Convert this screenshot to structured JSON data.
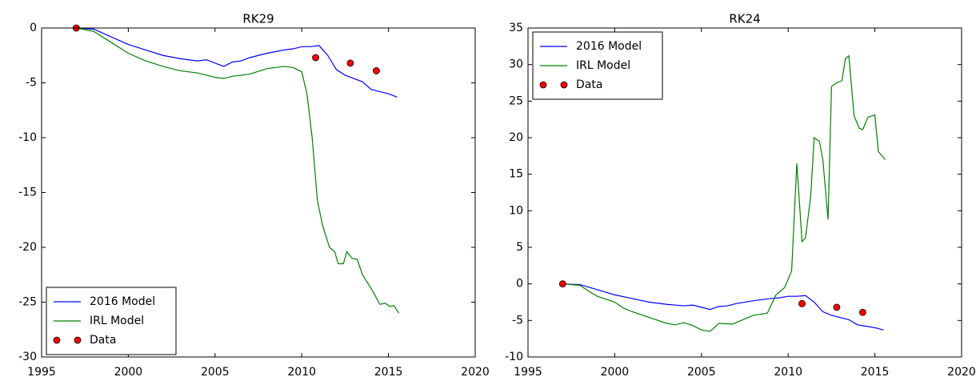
{
  "chart_data": [
    {
      "type": "line",
      "title": "RK29",
      "xlim": [
        1995,
        2020
      ],
      "xticks": [
        1995,
        2000,
        2005,
        2010,
        2015,
        2020
      ],
      "ylim": [
        -30,
        0
      ],
      "yticks": [
        -30,
        -25,
        -20,
        -15,
        -10,
        -5,
        0
      ],
      "grid": false,
      "legend": "lower left",
      "series": [
        {
          "name": "2016 Model",
          "color": "#0000ff",
          "mode": "line",
          "x": [
            1997,
            1998,
            1999,
            2000,
            2001,
            2002,
            2003,
            2004,
            2004.5,
            2005,
            2005.5,
            2006,
            2006.5,
            2007,
            2008,
            2009,
            2009.5,
            2010,
            2010.5,
            2011,
            2011.5,
            2012,
            2012.5,
            2013,
            2013.5,
            2014,
            2014.5,
            2015,
            2015.5
          ],
          "values": [
            0,
            -0.1,
            -0.8,
            -1.5,
            -2.0,
            -2.5,
            -2.8,
            -3.0,
            -2.9,
            -3.2,
            -3.5,
            -3.1,
            -3.0,
            -2.7,
            -2.3,
            -2.0,
            -1.9,
            -1.7,
            -1.7,
            -1.6,
            -2.5,
            -3.8,
            -4.3,
            -4.6,
            -4.9,
            -5.6,
            -5.8,
            -6.0,
            -6.3
          ]
        },
        {
          "name": "IRL Model",
          "color": "#008000",
          "mode": "line",
          "x": [
            1997,
            1998,
            1999,
            2000,
            2001,
            2002,
            2003,
            2004,
            2005,
            2005.5,
            2006,
            2007,
            2008,
            2009,
            2009.5,
            2010,
            2010.3,
            2010.6,
            2010.9,
            2011.2,
            2011.6,
            2011.9,
            2012.1,
            2012.4,
            2012.6,
            2012.9,
            2013.2,
            2013.5,
            2013.9,
            2014.2,
            2014.5,
            2014.8,
            2015.1,
            2015.3,
            2015.6
          ],
          "values": [
            0,
            -0.3,
            -1.3,
            -2.3,
            -3.0,
            -3.5,
            -3.9,
            -4.1,
            -4.5,
            -4.6,
            -4.4,
            -4.2,
            -3.7,
            -3.5,
            -3.6,
            -4.0,
            -6,
            -10,
            -15.7,
            -18,
            -20,
            -20.4,
            -21.5,
            -21.5,
            -20.4,
            -21.0,
            -21.1,
            -22.5,
            -23.5,
            -24.3,
            -25.2,
            -25.1,
            -25.4,
            -25.3,
            -26.0
          ]
        },
        {
          "name": "Data",
          "color": "#ff0000",
          "mode": "markers",
          "x": [
            1997,
            2010.8,
            2012.8,
            2014.3
          ],
          "values": [
            0,
            -2.7,
            -3.2,
            -3.9
          ]
        }
      ]
    },
    {
      "type": "line",
      "title": "RK24",
      "xlim": [
        1995,
        2020
      ],
      "xticks": [
        1995,
        2000,
        2005,
        2010,
        2015,
        2020
      ],
      "ylim": [
        -10,
        35
      ],
      "yticks": [
        -10,
        -5,
        0,
        5,
        10,
        15,
        20,
        25,
        30,
        35
      ],
      "grid": false,
      "legend": "upper left",
      "series": [
        {
          "name": "2016 Model",
          "color": "#0000ff",
          "mode": "line",
          "x": [
            1997,
            1998,
            1999,
            2000,
            2001,
            2002,
            2003,
            2004,
            2004.5,
            2005,
            2005.5,
            2006,
            2006.5,
            2007,
            2008,
            2009,
            2009.5,
            2010,
            2010.5,
            2011,
            2011.5,
            2012,
            2012.5,
            2013,
            2013.5,
            2014,
            2014.5,
            2015,
            2015.5
          ],
          "values": [
            0,
            -0.1,
            -0.8,
            -1.5,
            -2.0,
            -2.5,
            -2.8,
            -3.0,
            -2.9,
            -3.2,
            -3.5,
            -3.1,
            -3.0,
            -2.7,
            -2.3,
            -2.0,
            -1.9,
            -1.7,
            -1.7,
            -1.6,
            -2.5,
            -3.8,
            -4.3,
            -4.6,
            -4.9,
            -5.6,
            -5.8,
            -6.0,
            -6.3
          ]
        },
        {
          "name": "IRL Model",
          "color": "#008000",
          "mode": "line",
          "x": [
            1997,
            1998,
            1998.5,
            1999,
            2000,
            2000.5,
            2001,
            2002,
            2003,
            2003.5,
            2004,
            2004.5,
            2005,
            2005.5,
            2006,
            2006.8,
            2007.3,
            2008,
            2008.8,
            2009.3,
            2009.8,
            2010.2,
            2010.5,
            2010.8,
            2011,
            2011.3,
            2011.5,
            2011.8,
            2012.0,
            2012.3,
            2012.5,
            2012.8,
            2013.1,
            2013.3,
            2013.5,
            2013.8,
            2014.1,
            2014.3,
            2014.6,
            2015,
            2015.2,
            2015.6
          ],
          "values": [
            0,
            -0.2,
            -1.0,
            -1.7,
            -2.5,
            -3.3,
            -3.8,
            -4.6,
            -5.4,
            -5.6,
            -5.3,
            -5.7,
            -6.3,
            -6.5,
            -5.4,
            -5.5,
            -5.0,
            -4.3,
            -4.0,
            -1.5,
            -0.5,
            1.8,
            16.5,
            5.8,
            6.3,
            12,
            20,
            19.5,
            17,
            8.8,
            27,
            27.5,
            27.8,
            30.8,
            31.2,
            23,
            21.3,
            21.1,
            22.8,
            23.1,
            18.1,
            17.0
          ]
        },
        {
          "name": "Data",
          "color": "#ff0000",
          "mode": "markers",
          "x": [
            1997,
            2010.8,
            2012.8,
            2014.3
          ],
          "values": [
            0,
            -2.7,
            -3.2,
            -3.9
          ]
        }
      ]
    }
  ]
}
